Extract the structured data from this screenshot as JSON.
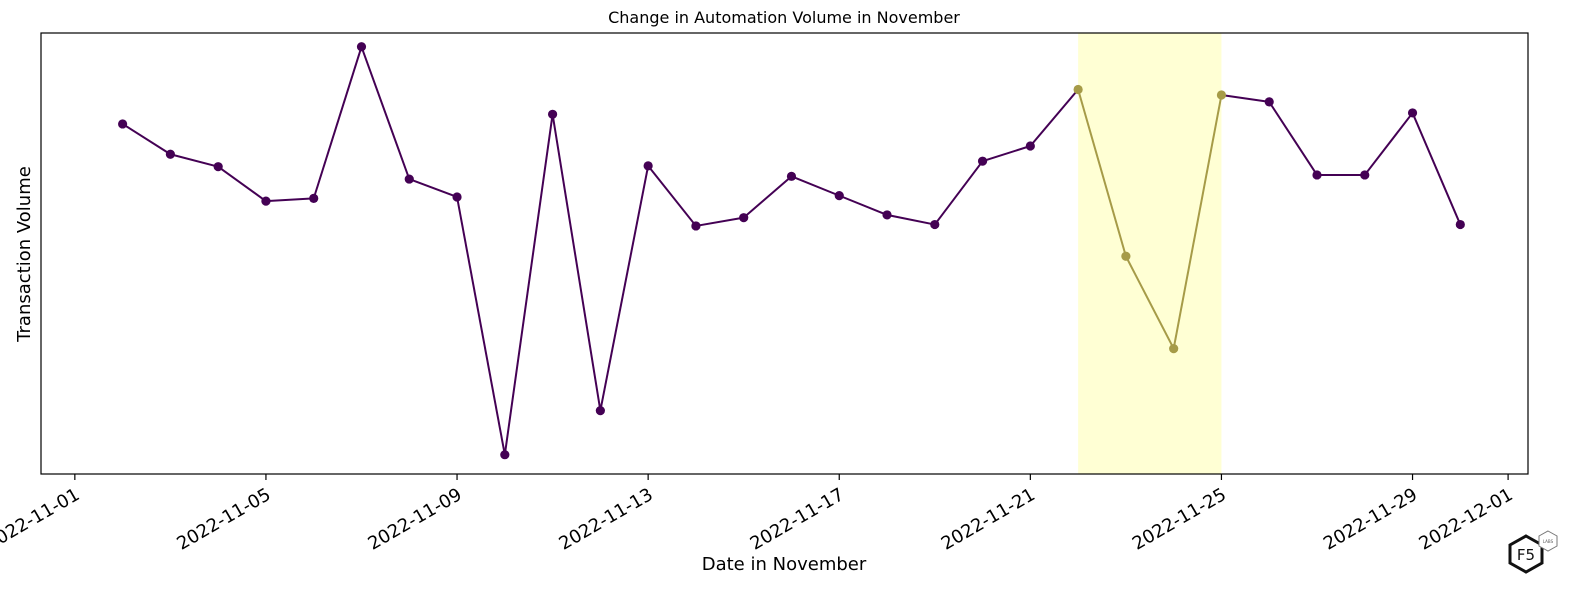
{
  "chart_data": {
    "type": "line",
    "title": "Change in Automation Volume in November",
    "xlabel": "Date in November",
    "ylabel": "Transaction Volume",
    "x_ticks": [
      "2022-11-01",
      "2022-11-05",
      "2022-11-09",
      "2022-11-13",
      "2022-11-17",
      "2022-11-21",
      "2022-11-25",
      "2022-11-29",
      "2022-12-01"
    ],
    "xlim": [
      "2022-11-01",
      "2022-12-01"
    ],
    "y_ticks_shown": false,
    "grid": false,
    "series": [
      {
        "color": "#440154",
        "x": [
          "2022-11-02",
          "2022-11-03",
          "2022-11-04",
          "2022-11-05",
          "2022-11-06",
          "2022-11-07",
          "2022-11-08",
          "2022-11-09",
          "2022-11-10",
          "2022-11-11",
          "2022-11-12",
          "2022-11-13",
          "2022-11-14",
          "2022-11-15",
          "2022-11-16",
          "2022-11-17",
          "2022-11-18",
          "2022-11-19",
          "2022-11-20",
          "2022-11-21",
          "2022-11-22",
          "2022-11-23",
          "2022-11-24",
          "2022-11-25",
          "2022-11-26",
          "2022-11-27",
          "2022-11-28",
          "2022-11-29",
          "2022-11-30"
        ],
        "values": [
          0.75,
          0.64,
          0.595,
          0.47,
          0.48,
          1.03,
          0.55,
          0.485,
          -0.45,
          0.785,
          -0.29,
          0.598,
          0.38,
          0.41,
          0.56,
          0.49,
          0.42,
          0.385,
          0.615,
          0.67,
          0.875,
          0.27,
          -0.065,
          0.855,
          0.83,
          0.565,
          0.565,
          0.79,
          0.385
        ]
      }
    ],
    "highlight": {
      "x_range": [
        "2022-11-22",
        "2022-11-25"
      ],
      "fill_color": "#ffffd4",
      "line_color": "#a69b48"
    }
  },
  "logo": {
    "text": "F5",
    "badge": "LABS"
  }
}
